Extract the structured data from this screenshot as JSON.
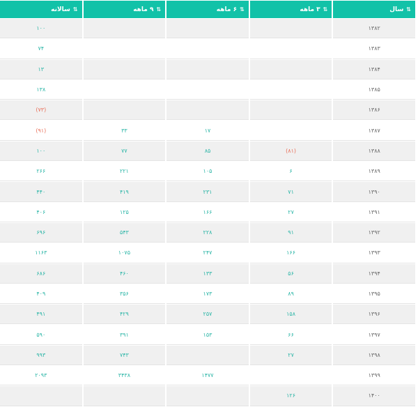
{
  "header": {
    "annual": "سالانه",
    "m9": "۹ ماهه",
    "m6": "۶ ماهه",
    "m3": "۳ ماهه",
    "year": "سال",
    "sort_icon": "sort-arrows-icon"
  },
  "colors": {
    "header": "#12c2a8",
    "positive": "#2ab5a6",
    "negative": "#e8705a"
  },
  "rows": [
    {
      "year": "۱۳۸۲",
      "m3": "",
      "m6": "",
      "m9": "",
      "annual": "۱۰۰"
    },
    {
      "year": "۱۳۸۳",
      "m3": "",
      "m6": "",
      "m9": "",
      "annual": "۷۴"
    },
    {
      "year": "۱۳۸۴",
      "m3": "",
      "m6": "",
      "m9": "",
      "annual": "۱۳"
    },
    {
      "year": "۱۳۸۵",
      "m3": "",
      "m6": "",
      "m9": "",
      "annual": "۱۳۸"
    },
    {
      "year": "۱۳۸۶",
      "m3": "",
      "m6": "",
      "m9": "",
      "annual": "(۷۳)"
    },
    {
      "year": "۱۳۸۷",
      "m3": "",
      "m6": "۱۷",
      "m9": "۳۳",
      "annual": "(۹۱)"
    },
    {
      "year": "۱۳۸۸",
      "m3": "(۸۱)",
      "m6": "۸۵",
      "m9": "۷۷",
      "annual": "۱۰۰"
    },
    {
      "year": "۱۳۸۹",
      "m3": "۶",
      "m6": "۱۰۵",
      "m9": "۲۲۱",
      "annual": "۲۶۶"
    },
    {
      "year": "۱۳۹۰",
      "m3": "۷۱",
      "m6": "۲۳۱",
      "m9": "۴۱۹",
      "annual": "۴۴۰"
    },
    {
      "year": "۱۳۹۱",
      "m3": "۲۷",
      "m6": "۱۶۶",
      "m9": "۱۲۵",
      "annual": "۴۰۶"
    },
    {
      "year": "۱۳۹۲",
      "m3": "۹۱",
      "m6": "۲۲۸",
      "m9": "۵۴۳",
      "annual": "۶۹۶"
    },
    {
      "year": "۱۳۹۳",
      "m3": "۱۶۶",
      "m6": "۲۴۷",
      "m9": "۱۰۷۵",
      "annual": "۱۱۶۳"
    },
    {
      "year": "۱۳۹۴",
      "m3": "۵۶",
      "m6": "۱۳۳",
      "m9": "۴۶۰",
      "annual": "۶۸۶"
    },
    {
      "year": "۱۳۹۵",
      "m3": "۸۹",
      "m6": "۱۷۳",
      "m9": "۳۵۶",
      "annual": "۴۰۹"
    },
    {
      "year": "۱۳۹۶",
      "m3": "۱۵۸",
      "m6": "۲۵۷",
      "m9": "۴۲۹",
      "annual": "۴۹۱"
    },
    {
      "year": "۱۳۹۷",
      "m3": "۶۶",
      "m6": "۱۵۳",
      "m9": "۳۹۱",
      "annual": "۵۹۰"
    },
    {
      "year": "۱۳۹۸",
      "m3": "۲۷",
      "m6": "",
      "m9": "۷۴۳",
      "annual": "۹۹۳"
    },
    {
      "year": "۱۳۹۹",
      "m3": "",
      "m6": "۱۴۷۷",
      "m9": "۳۴۳۸",
      "annual": "۲۰۹۳"
    },
    {
      "year": "۱۴۰۰",
      "m3": "۱۲۶",
      "m6": "",
      "m9": "",
      "annual": ""
    }
  ]
}
